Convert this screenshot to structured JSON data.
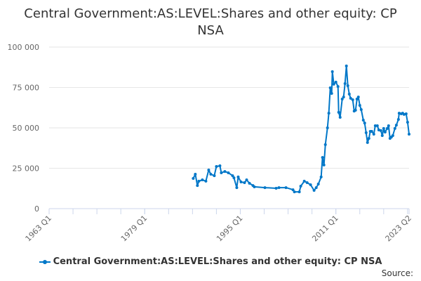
{
  "chart_data": {
    "type": "line",
    "title": "Central Government:AS:LEVEL:Shares and other equity: CP NSA",
    "xlabel": "",
    "ylabel": "",
    "xlim": [
      1963.0,
      2023.25
    ],
    "ylim": [
      0,
      100000
    ],
    "grid": true,
    "legend_position": "bottom",
    "x_ticks": [
      {
        "value": 1963.0,
        "label": "1963 Q1"
      },
      {
        "value": 1979.0,
        "label": "1979 Q1"
      },
      {
        "value": 1995.0,
        "label": "1995 Q1"
      },
      {
        "value": 2011.0,
        "label": "2011 Q1"
      },
      {
        "value": 2023.25,
        "label": "2023 Q2"
      }
    ],
    "y_ticks": [
      {
        "value": 0,
        "label": "0"
      },
      {
        "value": 25000,
        "label": "25 000"
      },
      {
        "value": 50000,
        "label": "50 000"
      },
      {
        "value": 75000,
        "label": "75 000"
      },
      {
        "value": 100000,
        "label": "100 000"
      }
    ],
    "series": [
      {
        "name": "Central Government:AS:LEVEL:Shares and other equity: CP NSA",
        "color": "#0077c8",
        "x": [
          1987.12,
          1987.47,
          1987.82,
          1988.06,
          1988.65,
          1989.24,
          1989.71,
          1990.06,
          1990.65,
          1991.0,
          1991.59,
          1991.82,
          1992.41,
          1993.0,
          1993.71,
          1993.94,
          1994.41,
          1994.65,
          1995.12,
          1995.71,
          1996.06,
          1996.53,
          1997.12,
          1997.35,
          1999.12,
          2001.0,
          2001.47,
          2002.65,
          2003.82,
          2004.06,
          2004.88,
          2005.12,
          2005.71,
          2006.18,
          2006.76,
          2007.35,
          2007.71,
          2008.06,
          2008.53,
          2008.76,
          2009.0,
          2009.24,
          2009.59,
          2009.82,
          2010.06,
          2010.29,
          2010.41,
          2010.65,
          2011.0,
          2011.35,
          2011.47,
          2011.71,
          2012.06,
          2012.29,
          2012.53,
          2012.76,
          2013.0,
          2013.24,
          2013.47,
          2013.82,
          2014.06,
          2014.29,
          2014.53,
          2014.76,
          2015.0,
          2015.24,
          2015.59,
          2015.82,
          2016.06,
          2016.29,
          2016.53,
          2016.76,
          2017.0,
          2017.35,
          2017.59,
          2017.94,
          2018.18,
          2018.53,
          2018.76,
          2019.0,
          2019.24,
          2019.59,
          2019.82,
          2020.06,
          2020.29,
          2020.53,
          2020.88,
          2021.12,
          2021.47,
          2021.59,
          2021.94,
          2022.18,
          2022.41,
          2022.76,
          2023.0,
          2023.25
        ],
        "y": [
          18700,
          21300,
          14300,
          17000,
          17800,
          17000,
          23900,
          21300,
          20400,
          26100,
          26500,
          22200,
          23000,
          22200,
          20400,
          19100,
          13000,
          19600,
          16500,
          16100,
          17800,
          15700,
          14300,
          13500,
          13000,
          12600,
          13000,
          13000,
          11700,
          10400,
          10400,
          13900,
          17000,
          16100,
          14800,
          11300,
          13000,
          15200,
          19600,
          31700,
          27000,
          39600,
          50000,
          59100,
          74800,
          71300,
          84800,
          77000,
          78300,
          75600,
          59600,
          56500,
          67800,
          69100,
          77400,
          88300,
          76100,
          70900,
          68300,
          67400,
          60400,
          60900,
          67800,
          69100,
          63900,
          61300,
          54800,
          53000,
          47000,
          40900,
          43500,
          47800,
          47800,
          46100,
          51300,
          51300,
          48700,
          48300,
          45200,
          49600,
          47400,
          49600,
          51300,
          43500,
          44300,
          45200,
          49600,
          51700,
          55200,
          59100,
          58700,
          59100,
          58300,
          58700,
          53500,
          46100
        ]
      }
    ]
  },
  "source_label": "Source:"
}
